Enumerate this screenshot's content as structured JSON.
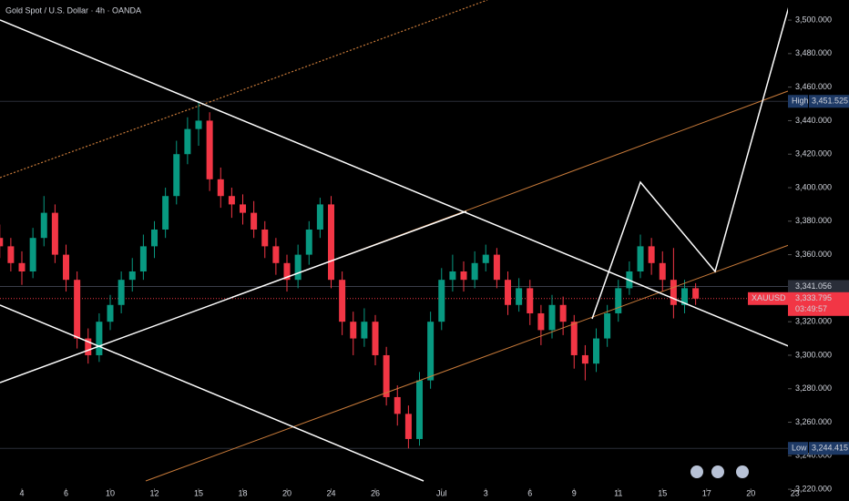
{
  "chart_data": {
    "type": "candlestick",
    "title": "Gold Spot / U.S. Dollar · 4h · OANDA",
    "x": [
      -1,
      -0.5,
      0,
      0.5,
      1,
      1.5,
      2,
      2.5,
      3,
      3.5,
      4,
      4.5,
      5,
      5.5,
      6,
      6.5,
      7,
      7.5,
      8,
      8.5,
      9,
      9.5,
      10,
      10.5,
      11,
      11.5,
      12,
      12.5,
      13,
      13.5,
      14,
      14.5,
      15,
      15.5,
      16,
      16.5,
      17,
      17.5,
      18,
      18.5,
      19,
      19.5,
      20,
      20.5,
      21,
      21.5,
      22,
      22.5,
      23,
      23.5,
      24,
      24.5,
      25,
      25.5,
      26,
      26.5,
      27,
      27.5,
      28,
      28.5,
      29,
      29.5,
      30,
      30.5
    ],
    "open": [
      3370,
      3365,
      3355,
      3350,
      3370,
      3385,
      3360,
      3345,
      3310,
      3300,
      3320,
      3330,
      3345,
      3350,
      3365,
      3375,
      3395,
      3420,
      3435,
      3440,
      3405,
      3395,
      3390,
      3385,
      3375,
      3365,
      3355,
      3345,
      3360,
      3375,
      3390,
      3345,
      3320,
      3310,
      3320,
      3300,
      3275,
      3265,
      3250,
      3285,
      3320,
      3345,
      3350,
      3345,
      3355,
      3360,
      3345,
      3330,
      3340,
      3325,
      3315,
      3330,
      3320,
      3300,
      3295,
      3310,
      3325,
      3340,
      3350,
      3365,
      3355,
      3345,
      3330,
      3340
    ],
    "high": [
      3378,
      3370,
      3362,
      3376,
      3395,
      3390,
      3366,
      3350,
      3316,
      3325,
      3336,
      3350,
      3358,
      3372,
      3380,
      3400,
      3428,
      3442,
      3451.525,
      3445,
      3412,
      3400,
      3396,
      3392,
      3380,
      3370,
      3360,
      3366,
      3380,
      3394,
      3395,
      3350,
      3326,
      3328,
      3324,
      3305,
      3282,
      3270,
      3290,
      3326,
      3352,
      3360,
      3356,
      3362,
      3366,
      3364,
      3350,
      3346,
      3345,
      3330,
      3336,
      3335,
      3324,
      3306,
      3316,
      3330,
      3345,
      3356,
      3372,
      3370,
      3362,
      3364,
      3345,
      3343
    ],
    "low": [
      3358,
      3350,
      3342,
      3346,
      3365,
      3355,
      3338,
      3304,
      3295,
      3296,
      3315,
      3325,
      3338,
      3345,
      3358,
      3370,
      3390,
      3414,
      3425,
      3398,
      3388,
      3382,
      3378,
      3370,
      3358,
      3348,
      3338,
      3340,
      3354,
      3370,
      3340,
      3312,
      3300,
      3305,
      3294,
      3270,
      3258,
      3244.415,
      3246,
      3280,
      3315,
      3338,
      3338,
      3340,
      3350,
      3340,
      3324,
      3326,
      3318,
      3306,
      3310,
      3312,
      3292,
      3285,
      3290,
      3305,
      3320,
      3336,
      3346,
      3348,
      3338,
      3322,
      3325,
      3330
    ],
    "close": [
      3365,
      3355,
      3350,
      3370,
      3385,
      3360,
      3345,
      3310,
      3300,
      3320,
      3330,
      3345,
      3350,
      3365,
      3375,
      3395,
      3420,
      3435,
      3440,
      3405,
      3395,
      3390,
      3385,
      3375,
      3365,
      3355,
      3345,
      3360,
      3375,
      3390,
      3345,
      3320,
      3310,
      3320,
      3300,
      3275,
      3265,
      3250,
      3285,
      3320,
      3345,
      3350,
      3345,
      3355,
      3360,
      3345,
      3330,
      3340,
      3325,
      3315,
      3330,
      3320,
      3300,
      3295,
      3310,
      3325,
      3340,
      3350,
      3365,
      3355,
      3345,
      3330,
      3340,
      3333.795
    ],
    "up_color": "#089981",
    "down_color": "#f23645",
    "xlim": [
      -0.99,
      34.68
    ],
    "xticks": [
      {
        "value": 0,
        "label": "4"
      },
      {
        "value": 2,
        "label": "6"
      },
      {
        "value": 4,
        "label": "10"
      },
      {
        "value": 6,
        "label": "12"
      },
      {
        "value": 8,
        "label": "15"
      },
      {
        "value": 10,
        "label": "18"
      },
      {
        "value": 12,
        "label": "20"
      },
      {
        "value": 14,
        "label": "24"
      },
      {
        "value": 16,
        "label": "26"
      },
      {
        "value": 19,
        "label": "Jul"
      },
      {
        "value": 21,
        "label": "3"
      },
      {
        "value": 23,
        "label": "6"
      },
      {
        "value": 25,
        "label": "9"
      },
      {
        "value": 27,
        "label": "11"
      },
      {
        "value": 29,
        "label": "15"
      },
      {
        "value": 31,
        "label": "17"
      },
      {
        "value": 33,
        "label": "20"
      },
      {
        "value": 35,
        "label": "23"
      }
    ],
    "ylim": [
      3213,
      3512
    ],
    "yticks": [
      {
        "value": 3220,
        "label": "3,220.000"
      },
      {
        "value": 3240,
        "label": "3,240.000"
      },
      {
        "value": 3260,
        "label": "3,260.000"
      },
      {
        "value": 3280,
        "label": "3,280.000"
      },
      {
        "value": 3300,
        "label": "3,300.000"
      },
      {
        "value": 3320,
        "label": "3,320.000"
      },
      {
        "value": 3340,
        "label": "3,340.000"
      },
      {
        "value": 3360,
        "label": "3,360.000"
      },
      {
        "value": 3380,
        "label": "3,380.000"
      },
      {
        "value": 3400,
        "label": "3,400.000"
      },
      {
        "value": 3420,
        "label": "3,420.000"
      },
      {
        "value": 3440,
        "label": "3,440.000"
      },
      {
        "value": 3460,
        "label": "3,460.000"
      },
      {
        "value": 3480,
        "label": "3,480.000"
      },
      {
        "value": 3500,
        "label": "3,500.000"
      }
    ],
    "high_marker": {
      "name": "High",
      "value": 3451.525,
      "label": "3,451.525"
    },
    "low_marker": {
      "name": "Low",
      "value": 3244.415,
      "label": "3,244.415"
    },
    "prev_close": {
      "value": 3341.056,
      "label": "3,341.056"
    },
    "last_price": {
      "symbol": "XAUUSD",
      "value": 3333.795,
      "label": "3,333.795",
      "countdown": "03:49:57"
    }
  }
}
